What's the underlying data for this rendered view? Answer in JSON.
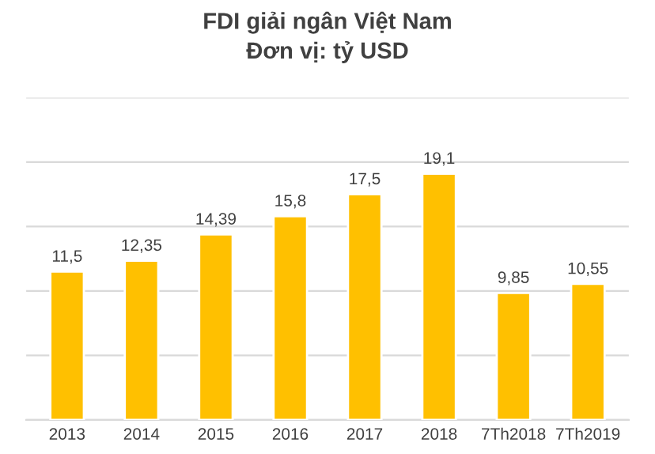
{
  "chart_data": {
    "type": "bar",
    "title": "FDI giải ngân Việt Nam",
    "subtitle": "Đơn vị: tỷ USD",
    "categories": [
      "2013",
      "2014",
      "2015",
      "2016",
      "2017",
      "2018",
      "7Th2018",
      "7Th2019"
    ],
    "values": [
      11.5,
      12.35,
      14.39,
      15.8,
      17.5,
      19.1,
      9.85,
      10.55
    ],
    "value_labels": [
      "11,5",
      "12,35",
      "14,39",
      "15,8",
      "17,5",
      "19,1",
      "9,85",
      "10,55"
    ],
    "color": "#ffc000",
    "ylim": [
      0,
      25
    ],
    "yticks": [
      {
        "value": 0,
        "label": null
      },
      {
        "value": 5,
        "label": null
      },
      {
        "value": 10,
        "label": null
      },
      {
        "value": 15,
        "label": null
      },
      {
        "value": 20,
        "label": null
      },
      {
        "value": 25,
        "label": null
      }
    ],
    "grid": "y",
    "tick_labels": "x",
    "legend": false
  }
}
